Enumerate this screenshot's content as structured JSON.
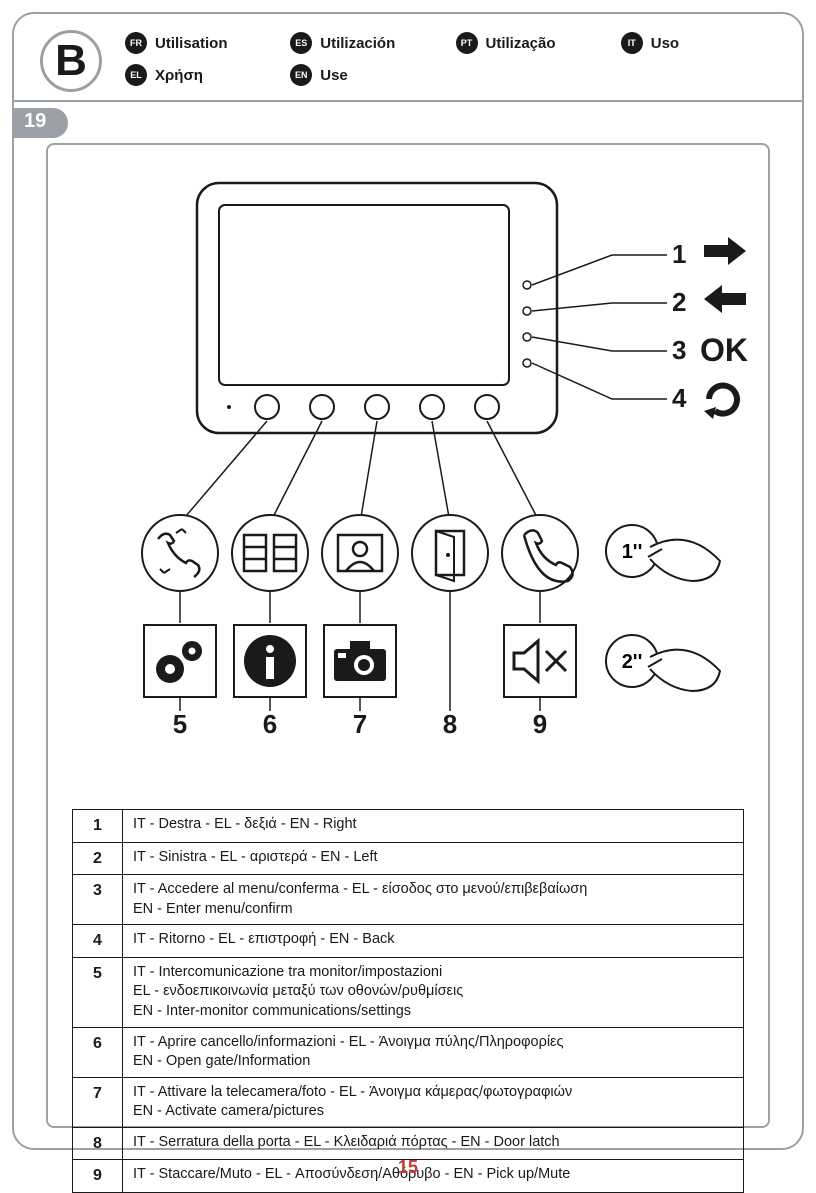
{
  "section_letter": "B",
  "languages": [
    {
      "code": "FR",
      "label": "Utilisation"
    },
    {
      "code": "ES",
      "label": "Utilización"
    },
    {
      "code": "PT",
      "label": "Utilização"
    },
    {
      "code": "IT",
      "label": "Uso"
    },
    {
      "code": "EL",
      "label": "Χρήση"
    },
    {
      "code": "EN",
      "label": "Use"
    }
  ],
  "step_number": "19",
  "page_number": "15",
  "side_labels": [
    "1",
    "2",
    "3",
    "4"
  ],
  "ok_label": "OK",
  "bottom_labels": [
    "5",
    "6",
    "7",
    "8",
    "9"
  ],
  "press_labels": [
    "1''",
    "2''"
  ],
  "legend_rows": [
    {
      "n": "1",
      "text": "IT - Destra  - EL - δεξιά  - EN - Right"
    },
    {
      "n": "2",
      "text": "IT - Sinistra  - EL - αριστερά  - EN - Left"
    },
    {
      "n": "3",
      "text": "IT - Accedere al menu/conferma - EL - είσοδος στο μενού/επιβεβαίωση\nEN - Enter menu/confirm"
    },
    {
      "n": "4",
      "text": "IT - Ritorno - EL - επιστροφή - EN - Back"
    },
    {
      "n": "5",
      "text": "IT - Intercomunicazione tra monitor/impostazioni\nEL - ενδοεπικοινωνία μεταξύ των οθονών/ρυθμίσεις\nEN - Inter-monitor communications/settings"
    },
    {
      "n": "6",
      "text": "IT - Aprire cancello/informazioni - EL - Άνοιγμα πύλης/Πληροφορίες\nEN - Open gate/Information"
    },
    {
      "n": "7",
      "text": "IT - Attivare la telecamera/foto - EL - Άνοιγμα κάμερας/φωτογραφιών\nEN - Activate camera/pictures"
    },
    {
      "n": "8",
      "text": "IT - Serratura della porta - EL - Κλειδαριά πόρτας - EN - Door latch"
    },
    {
      "n": "9",
      "text": "IT - Staccare/Muto - EL - Αποσύνδεση/Αθόρυβο - EN - Pick up/Mute"
    }
  ],
  "colors": {
    "page_border": "#9aa0a6",
    "text": "#1a1a1a",
    "footer_red": "#c53b2f"
  }
}
